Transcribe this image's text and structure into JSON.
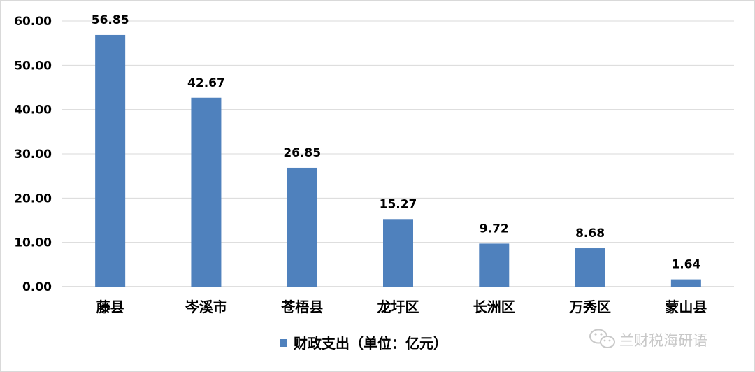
{
  "chart_data": {
    "type": "bar",
    "categories": [
      "藤县",
      "岑溪市",
      "苍梧县",
      "龙圩区",
      "长洲区",
      "万秀区",
      "蒙山县"
    ],
    "series": [
      {
        "name": "财政支出（单位：亿元）",
        "values": [
          56.85,
          42.67,
          26.85,
          15.27,
          9.72,
          8.68,
          1.64
        ],
        "color": "#4f81bd"
      }
    ],
    "data_labels": [
      "56.85",
      "42.67",
      "26.85",
      "15.27",
      "9.72",
      "8.68",
      "1.64"
    ],
    "ylim": [
      0,
      60
    ],
    "yticks": [
      0,
      10,
      20,
      30,
      40,
      50,
      60
    ],
    "ytick_labels": [
      "0.00",
      "10.00",
      "20.00",
      "30.00",
      "40.00",
      "50.00",
      "60.00"
    ],
    "grid": true,
    "legend_position": "bottom-center",
    "title": "",
    "xlabel": "",
    "ylabel": ""
  },
  "colors": {
    "bar": "#4f81bd",
    "grid": "#d9d9d9",
    "axis": "#bfbfbf",
    "watermark": "#c8c8c8"
  },
  "watermark": {
    "text": "兰财税海研语",
    "icon": "wechat-icon"
  }
}
